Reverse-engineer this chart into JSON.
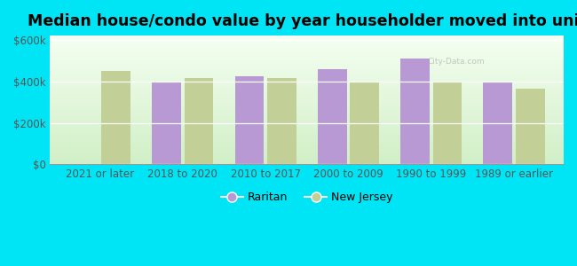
{
  "title": "Median house/condo value by year householder moved into unit",
  "categories": [
    "2021 or later",
    "2018 to 2020",
    "2010 to 2017",
    "2000 to 2009",
    "1990 to 1999",
    "1989 or earlier"
  ],
  "raritan_values": [
    null,
    400000,
    425000,
    460000,
    510000,
    400000
  ],
  "nj_values": [
    450000,
    415000,
    415000,
    400000,
    400000,
    365000
  ],
  "raritan_color": "#b899d4",
  "nj_color": "#c2cf96",
  "background_outer": "#00e5f5",
  "ylim": [
    0,
    620000
  ],
  "yticks": [
    0,
    200000,
    400000,
    600000
  ],
  "ytick_labels": [
    "$0",
    "$200k",
    "$400k",
    "$600k"
  ],
  "bar_width": 0.35,
  "legend_raritan": "Raritan",
  "legend_nj": "New Jersey",
  "title_fontsize": 12.5,
  "tick_fontsize": 8.5,
  "legend_fontsize": 9
}
